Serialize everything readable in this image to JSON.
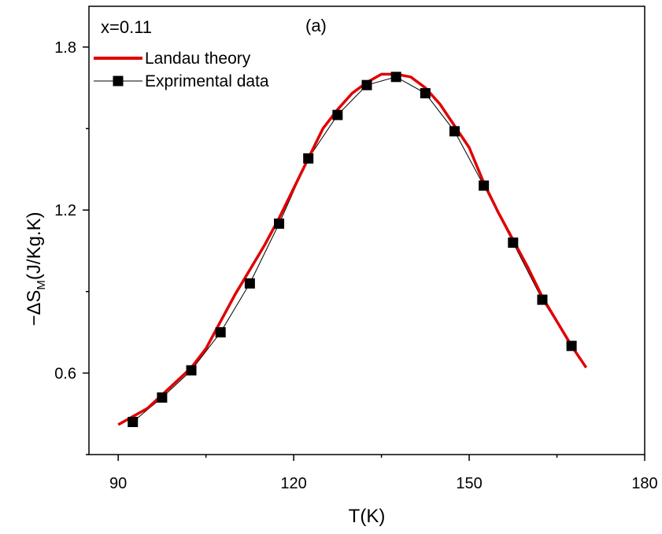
{
  "chart_data": {
    "type": "line",
    "title": "",
    "annotations": {
      "composition": "x=0.11",
      "panel": "(a)"
    },
    "xlabel": "T(K)",
    "ylabel_main": "−ΔS",
    "ylabel_sub": "M",
    "ylabel_unit": "(J/Kg.K)",
    "xlim": [
      85,
      180
    ],
    "ylim": [
      0.3,
      1.95
    ],
    "xticks": [
      90,
      120,
      150,
      180
    ],
    "yticks": [
      0.6,
      1.2,
      1.8
    ],
    "xtick_labels": [
      "90",
      "120",
      "150",
      "180"
    ],
    "ytick_labels": [
      "0.6",
      "1.2",
      "1.8"
    ],
    "legend_position": "top-left",
    "grid": false,
    "series": [
      {
        "name": "Landau theory",
        "color": "#e00000",
        "style": "line",
        "x": [
          90,
          92.5,
          95,
          97.5,
          100,
          102.5,
          105,
          107.5,
          110,
          112.5,
          115,
          117.5,
          120,
          122.5,
          125,
          127.5,
          130,
          132.5,
          135,
          137.5,
          140,
          142.5,
          145,
          147.5,
          150,
          152.5,
          155,
          157.5,
          160,
          162.5,
          165,
          167.5,
          170
        ],
        "y": [
          0.41,
          0.44,
          0.47,
          0.52,
          0.57,
          0.62,
          0.69,
          0.79,
          0.89,
          0.98,
          1.07,
          1.17,
          1.28,
          1.39,
          1.5,
          1.57,
          1.63,
          1.67,
          1.7,
          1.7,
          1.69,
          1.65,
          1.59,
          1.51,
          1.43,
          1.3,
          1.19,
          1.09,
          0.99,
          0.88,
          0.79,
          0.7,
          0.62
        ]
      },
      {
        "name": "Exprimental data",
        "color": "#000000",
        "style": "line-with-square-markers",
        "x": [
          92.5,
          97.5,
          102.5,
          107.5,
          112.5,
          117.5,
          122.5,
          127.5,
          132.5,
          137.5,
          142.5,
          147.5,
          152.5,
          157.5,
          162.5,
          167.5
        ],
        "y": [
          0.42,
          0.51,
          0.61,
          0.75,
          0.93,
          1.15,
          1.39,
          1.55,
          1.66,
          1.69,
          1.63,
          1.49,
          1.29,
          1.08,
          0.87,
          0.7
        ]
      }
    ]
  }
}
